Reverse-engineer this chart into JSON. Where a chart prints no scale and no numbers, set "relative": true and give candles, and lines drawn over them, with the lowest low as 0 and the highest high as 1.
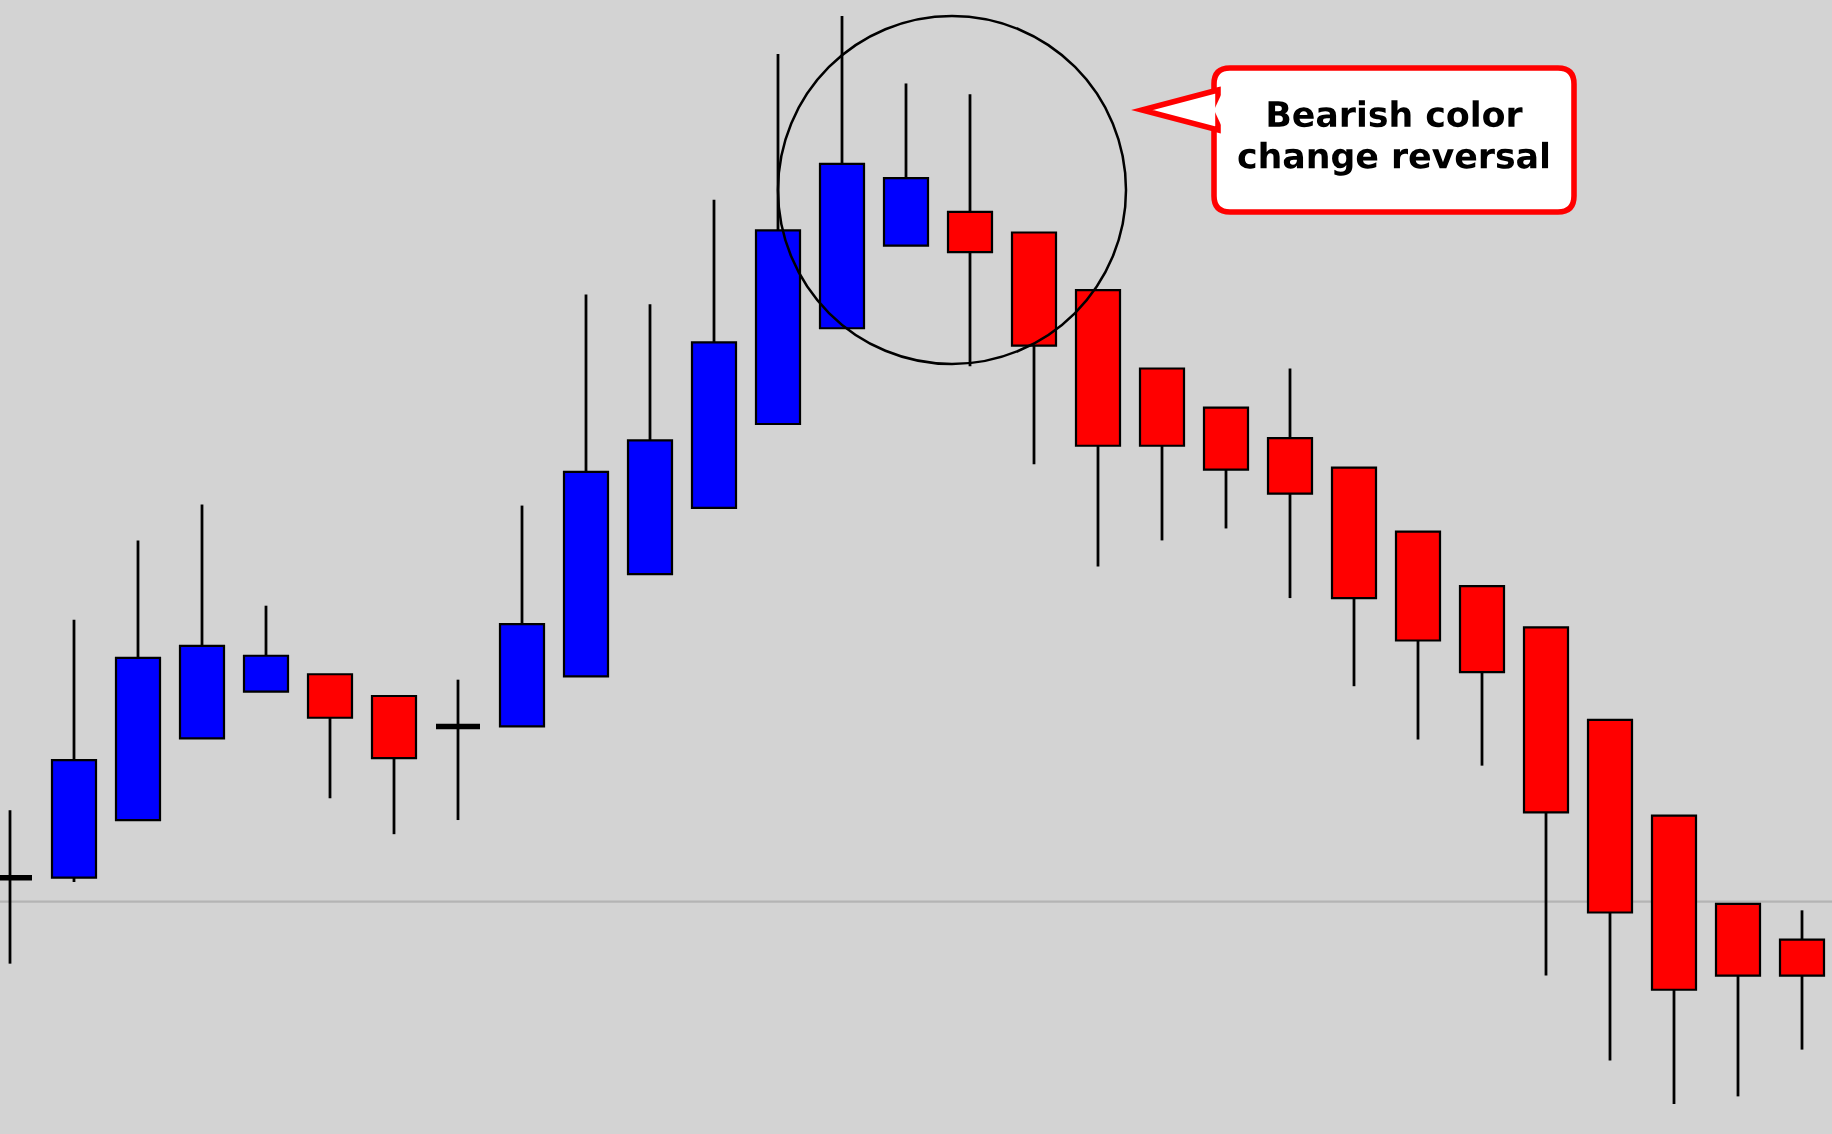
{
  "chart_data": {
    "type": "candlestick",
    "relative": true,
    "categories": [
      null,
      null,
      null,
      null,
      null,
      null,
      null,
      null,
      null,
      null,
      null,
      null,
      null,
      null,
      null,
      null,
      null,
      null,
      null,
      null,
      null,
      null,
      null,
      null,
      null,
      null,
      null,
      null,
      null
    ],
    "ohlc": [
      [
        0.208,
        0.27,
        0.129,
        0.208
      ],
      [
        0.208,
        0.445,
        0.204,
        0.316
      ],
      [
        0.261,
        0.518,
        0.261,
        0.41
      ],
      [
        0.336,
        0.551,
        0.336,
        0.421
      ],
      [
        0.379,
        0.458,
        0.379,
        0.412
      ],
      [
        0.395,
        0.395,
        0.281,
        0.355
      ],
      [
        0.375,
        0.375,
        0.248,
        0.318
      ],
      [
        0.347,
        0.39,
        0.261,
        0.347
      ],
      [
        0.347,
        0.55,
        0.347,
        0.441
      ],
      [
        0.393,
        0.744,
        0.393,
        0.581
      ],
      [
        0.487,
        0.735,
        0.487,
        0.61
      ],
      [
        0.548,
        0.831,
        0.548,
        0.7
      ],
      [
        0.625,
        0.965,
        0.625,
        0.803
      ],
      [
        0.713,
        1.0,
        0.713,
        0.864
      ],
      [
        0.789,
        0.938,
        0.789,
        0.851
      ],
      [
        0.82,
        0.928,
        0.678,
        0.783
      ],
      [
        0.801,
        0.801,
        0.588,
        0.697
      ],
      [
        0.748,
        0.748,
        0.494,
        0.605
      ],
      [
        0.676,
        0.676,
        0.518,
        0.605
      ],
      [
        0.64,
        0.64,
        0.529,
        0.583
      ],
      [
        0.612,
        0.676,
        0.465,
        0.561
      ],
      [
        0.585,
        0.585,
        0.384,
        0.465
      ],
      [
        0.526,
        0.526,
        0.335,
        0.426
      ],
      [
        0.476,
        0.476,
        0.311,
        0.397
      ],
      [
        0.438,
        0.438,
        0.118,
        0.268
      ],
      [
        0.353,
        0.353,
        0.04,
        0.176
      ],
      [
        0.265,
        0.265,
        0.0,
        0.105
      ],
      [
        0.184,
        0.184,
        0.007,
        0.118
      ],
      [
        0.151,
        0.178,
        0.05,
        0.118
      ]
    ],
    "colors": [
      "#000000",
      "#0000ff",
      "#0000ff",
      "#0000ff",
      "#0000ff",
      "#ff0000",
      "#ff0000",
      "#000000",
      "#0000ff",
      "#0000ff",
      "#0000ff",
      "#0000ff",
      "#0000ff",
      "#0000ff",
      "#0000ff",
      "#ff0000",
      "#ff0000",
      "#ff0000",
      "#ff0000",
      "#ff0000",
      "#ff0000",
      "#ff0000",
      "#ff0000",
      "#ff0000",
      "#ff0000",
      "#ff0000",
      "#ff0000",
      "#ff0000",
      "#ff0000"
    ],
    "ref_lines": [
      {
        "axis": "y",
        "value": 0.186,
        "color": "#b4b4b4"
      }
    ],
    "annotations": [
      "Bearish color\nchange reversal"
    ],
    "grid": false
  }
}
